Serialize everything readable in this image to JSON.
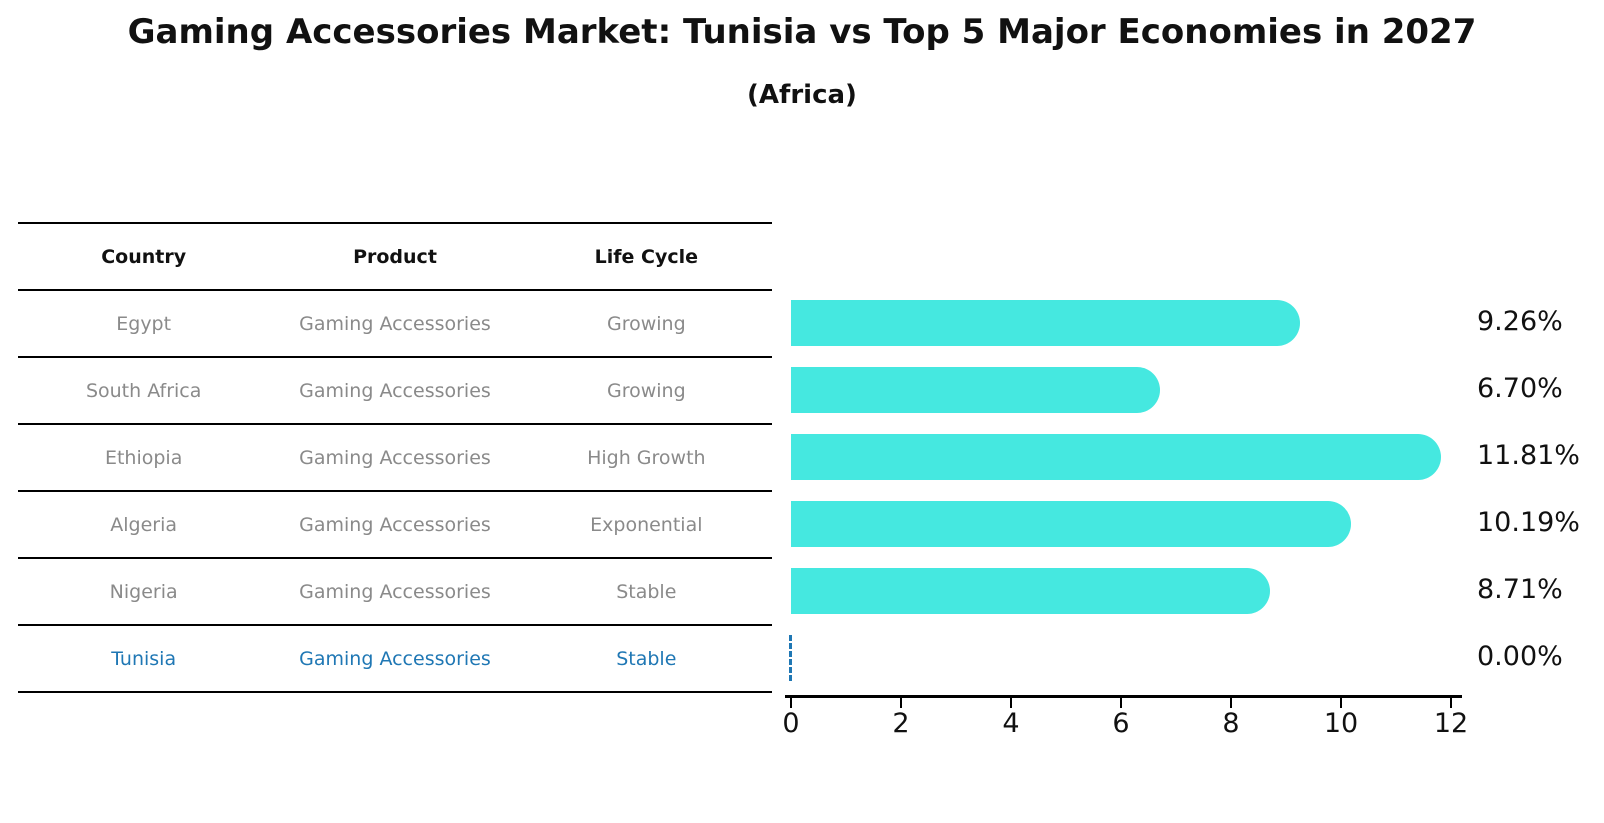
{
  "title": "Gaming Accessories Market: Tunisia vs Top 5 Major Economies in 2027",
  "subtitle": "(Africa)",
  "table": {
    "headers": [
      "Country",
      "Product",
      "Life Cycle"
    ],
    "rows": [
      {
        "country": "Egypt",
        "product": "Gaming Accessories",
        "life_cycle": "Growing",
        "highlighted": false
      },
      {
        "country": "South Africa",
        "product": "Gaming Accessories",
        "life_cycle": "Growing",
        "highlighted": false
      },
      {
        "country": "Ethiopia",
        "product": "Gaming Accessories",
        "life_cycle": "High Growth",
        "highlighted": false
      },
      {
        "country": "Algeria",
        "product": "Gaming Accessories",
        "life_cycle": "Exponential",
        "highlighted": false
      },
      {
        "country": "Nigeria",
        "product": "Gaming Accessories",
        "life_cycle": "Stable",
        "highlighted": false
      },
      {
        "country": "Tunisia",
        "product": "Gaming Accessories",
        "life_cycle": "Stable",
        "highlighted": true
      }
    ]
  },
  "chart_data": {
    "type": "bar",
    "orientation": "horizontal",
    "categories": [
      "Egypt",
      "South Africa",
      "Ethiopia",
      "Algeria",
      "Nigeria",
      "Tunisia"
    ],
    "values": [
      9.26,
      6.7,
      11.81,
      10.19,
      8.71,
      0.0
    ],
    "value_labels": [
      "9.26%",
      "6.70%",
      "11.81%",
      "10.19%",
      "8.71%",
      "0.00%"
    ],
    "xticks": [
      "0",
      "2",
      "4",
      "6",
      "8",
      "10",
      "12"
    ],
    "xtick_values": [
      0,
      2,
      4,
      6,
      8,
      10,
      12
    ],
    "xlim": [
      0,
      12.2
    ],
    "grid": false,
    "legend": false,
    "bar_color": "#45E8E0",
    "highlight_color": "#1f77b4",
    "axis_color": "#000000",
    "title": "Gaming Accessories Market: Tunisia vs Top 5 Major Economies in 2027",
    "subtitle": "(Africa)"
  }
}
